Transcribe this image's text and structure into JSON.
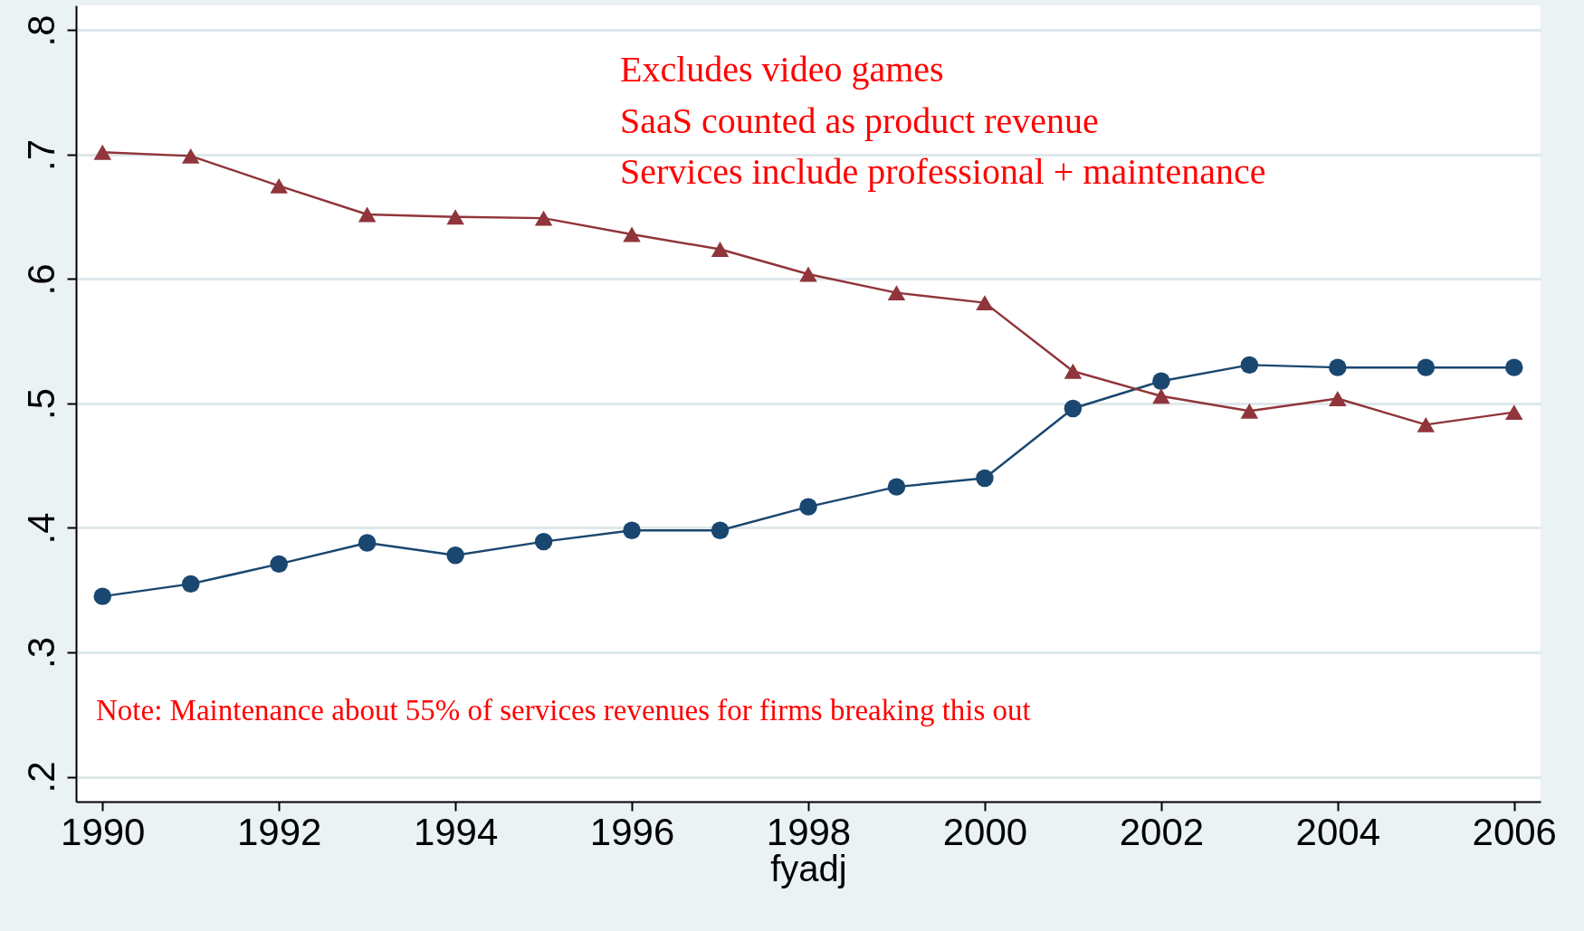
{
  "chart_data": {
    "type": "line",
    "xlabel": "fyadj",
    "x": [
      1990,
      1991,
      1992,
      1993,
      1994,
      1995,
      1996,
      1997,
      1998,
      1999,
      2000,
      2001,
      2002,
      2003,
      2004,
      2005,
      2006
    ],
    "series": [
      {
        "color": "#1a476f",
        "marker": "circle",
        "values": [
          0.345,
          0.355,
          0.371,
          0.388,
          0.378,
          0.389,
          0.398,
          0.398,
          0.417,
          0.433,
          0.44,
          0.496,
          0.518,
          0.531,
          0.529,
          0.529,
          0.529
        ]
      },
      {
        "color": "#90353b",
        "marker": "triangle",
        "values": [
          0.702,
          0.699,
          0.675,
          0.652,
          0.65,
          0.649,
          0.636,
          0.624,
          0.604,
          0.589,
          0.581,
          0.526,
          0.506,
          0.494,
          0.504,
          0.483,
          0.493
        ]
      }
    ],
    "xlim": [
      1989.7,
      2006.3
    ],
    "xticks": [
      1990,
      1992,
      1994,
      1996,
      1998,
      2000,
      2002,
      2004,
      2006
    ],
    "ylim": [
      0.18,
      0.82
    ],
    "yticks": [
      {
        "value": 0.2,
        "label": ".2"
      },
      {
        "value": 0.3,
        "label": ".3"
      },
      {
        "value": 0.4,
        "label": ".4"
      },
      {
        "value": 0.5,
        "label": ".5"
      },
      {
        "value": 0.6,
        "label": ".6"
      },
      {
        "value": 0.7,
        "label": ".7"
      },
      {
        "value": 0.8,
        "label": ".8"
      }
    ],
    "grid": "y",
    "line_style": "solid",
    "annotations": [
      "Excludes video games",
      "SaaS counted as product revenue",
      "Services include professional + maintenance",
      "Note: Maintenance  about 55% of services revenues for firms breaking this out"
    ]
  }
}
